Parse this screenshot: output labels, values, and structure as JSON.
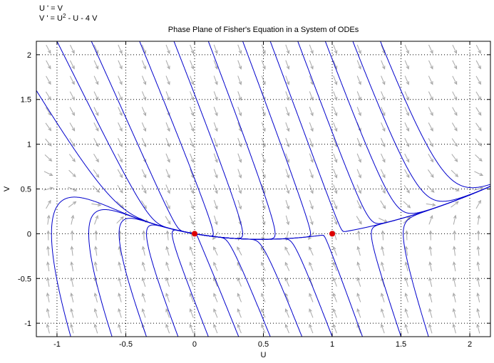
{
  "equations": {
    "line1": "U ' = V",
    "line2_prefix": "V ' = U",
    "line2_sup": "2",
    "line2_suffix": " - U - 4 V"
  },
  "chart_data": {
    "type": "phase_plane",
    "title": "Phase Plane of Fisher's Equation in a System of ODEs",
    "xlabel": "U",
    "ylabel": "V",
    "xlim": [
      -1.15,
      2.15
    ],
    "ylim": [
      -1.15,
      2.15
    ],
    "xticks": [
      "-1",
      "-0.5",
      "0",
      "0.5",
      "1",
      "1.5",
      "2"
    ],
    "xtick_values": [
      -1,
      -0.5,
      0,
      0.5,
      1,
      1.5,
      2
    ],
    "yticks": [
      "-1",
      "-0.5",
      "0",
      "0.5",
      "1",
      "1.5",
      "2"
    ],
    "ytick_values": [
      -1,
      -0.5,
      0,
      0.5,
      1,
      1.5,
      2
    ],
    "grid": true,
    "grid_style": "dotted",
    "system": {
      "dU": "V",
      "dV": "U^2 - U - 4V"
    },
    "equilibria": [
      {
        "u": 0,
        "v": 0
      },
      {
        "u": 1,
        "v": 0
      }
    ],
    "trajectory_starts": [
      {
        "u": -1.15,
        "v": 1.6
      },
      {
        "u": -1.0,
        "v": 2.15
      },
      {
        "u": -0.75,
        "v": 2.15
      },
      {
        "u": -0.4,
        "v": 2.15
      },
      {
        "u": -0.15,
        "v": 2.15
      },
      {
        "u": 0.1,
        "v": 2.15
      },
      {
        "u": 0.35,
        "v": 2.15
      },
      {
        "u": 0.55,
        "v": 2.15
      },
      {
        "u": 0.75,
        "v": 2.15
      },
      {
        "u": 0.95,
        "v": 2.15
      },
      {
        "u": 1.15,
        "v": 2.15
      },
      {
        "u": 1.35,
        "v": 2.15
      },
      {
        "u": -0.9,
        "v": -1.15
      },
      {
        "u": -0.6,
        "v": -1.15
      },
      {
        "u": -0.35,
        "v": -1.15
      },
      {
        "u": -0.12,
        "v": -1.15
      },
      {
        "u": 0.1,
        "v": -1.15
      },
      {
        "u": 0.32,
        "v": -1.15
      },
      {
        "u": 0.55,
        "v": -1.15
      },
      {
        "u": 0.78,
        "v": -1.15
      },
      {
        "u": 1.0,
        "v": -1.15
      },
      {
        "u": 1.22,
        "v": -1.15
      },
      {
        "u": 1.5,
        "v": -1.15
      },
      {
        "u": 1.7,
        "v": -1.15
      }
    ],
    "colors": {
      "trajectory": "#0000cc",
      "arrow": "#a8a8a8",
      "equilibrium": "#dd0000",
      "grid": "#000000"
    }
  }
}
